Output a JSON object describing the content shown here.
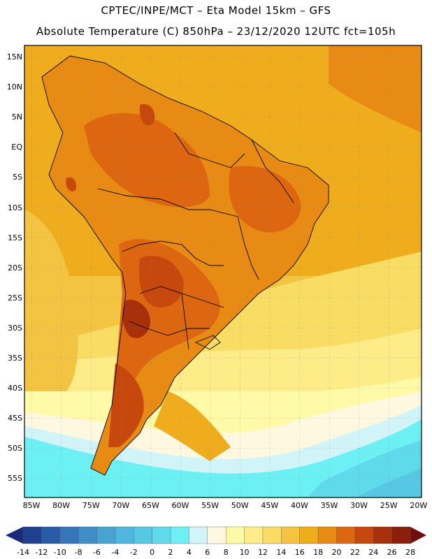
{
  "header": {
    "line1": "CPTEC/INPE/MCT –  Eta Model 15km – GFS",
    "line2": "Absolute Temperature (C) 850hPa – 23/12/2020 12UTC fct=105h"
  },
  "map": {
    "lat_labels": [
      "15N",
      "10N",
      "5N",
      "EQ",
      "5S",
      "10S",
      "15S",
      "20S",
      "25S",
      "30S",
      "35S",
      "40S",
      "45S",
      "50S",
      "55S"
    ],
    "lon_labels": [
      "85W",
      "80W",
      "75W",
      "70W",
      "65W",
      "60W",
      "55W",
      "50W",
      "45W",
      "40W",
      "35W",
      "30W",
      "25W",
      "20W"
    ]
  },
  "colorbar": {
    "labels": [
      "-14",
      "-12",
      "-10",
      "-8",
      "-6",
      "-4",
      "-2",
      "0",
      "2",
      "4",
      "6",
      "8",
      "10",
      "12",
      "14",
      "16",
      "18",
      "20",
      "22",
      "24",
      "26",
      "28"
    ],
    "colors": [
      "#1f3f8f",
      "#2a5ba8",
      "#3575ba",
      "#3f8ec8",
      "#47a3d2",
      "#4fb6dc",
      "#56c8e4",
      "#5fdaeb",
      "#6cf0f4",
      "#d0f4f8",
      "#fff8e0",
      "#fffaa8",
      "#fdec87",
      "#f9dc63",
      "#f2c442",
      "#efac1d",
      "#e88b14",
      "#dd6710",
      "#c6480c",
      "#a8300b",
      "#8b1f0c"
    ],
    "left_arrow_color": "#1a2a7a",
    "right_arrow_color": "#6d0f0f"
  }
}
